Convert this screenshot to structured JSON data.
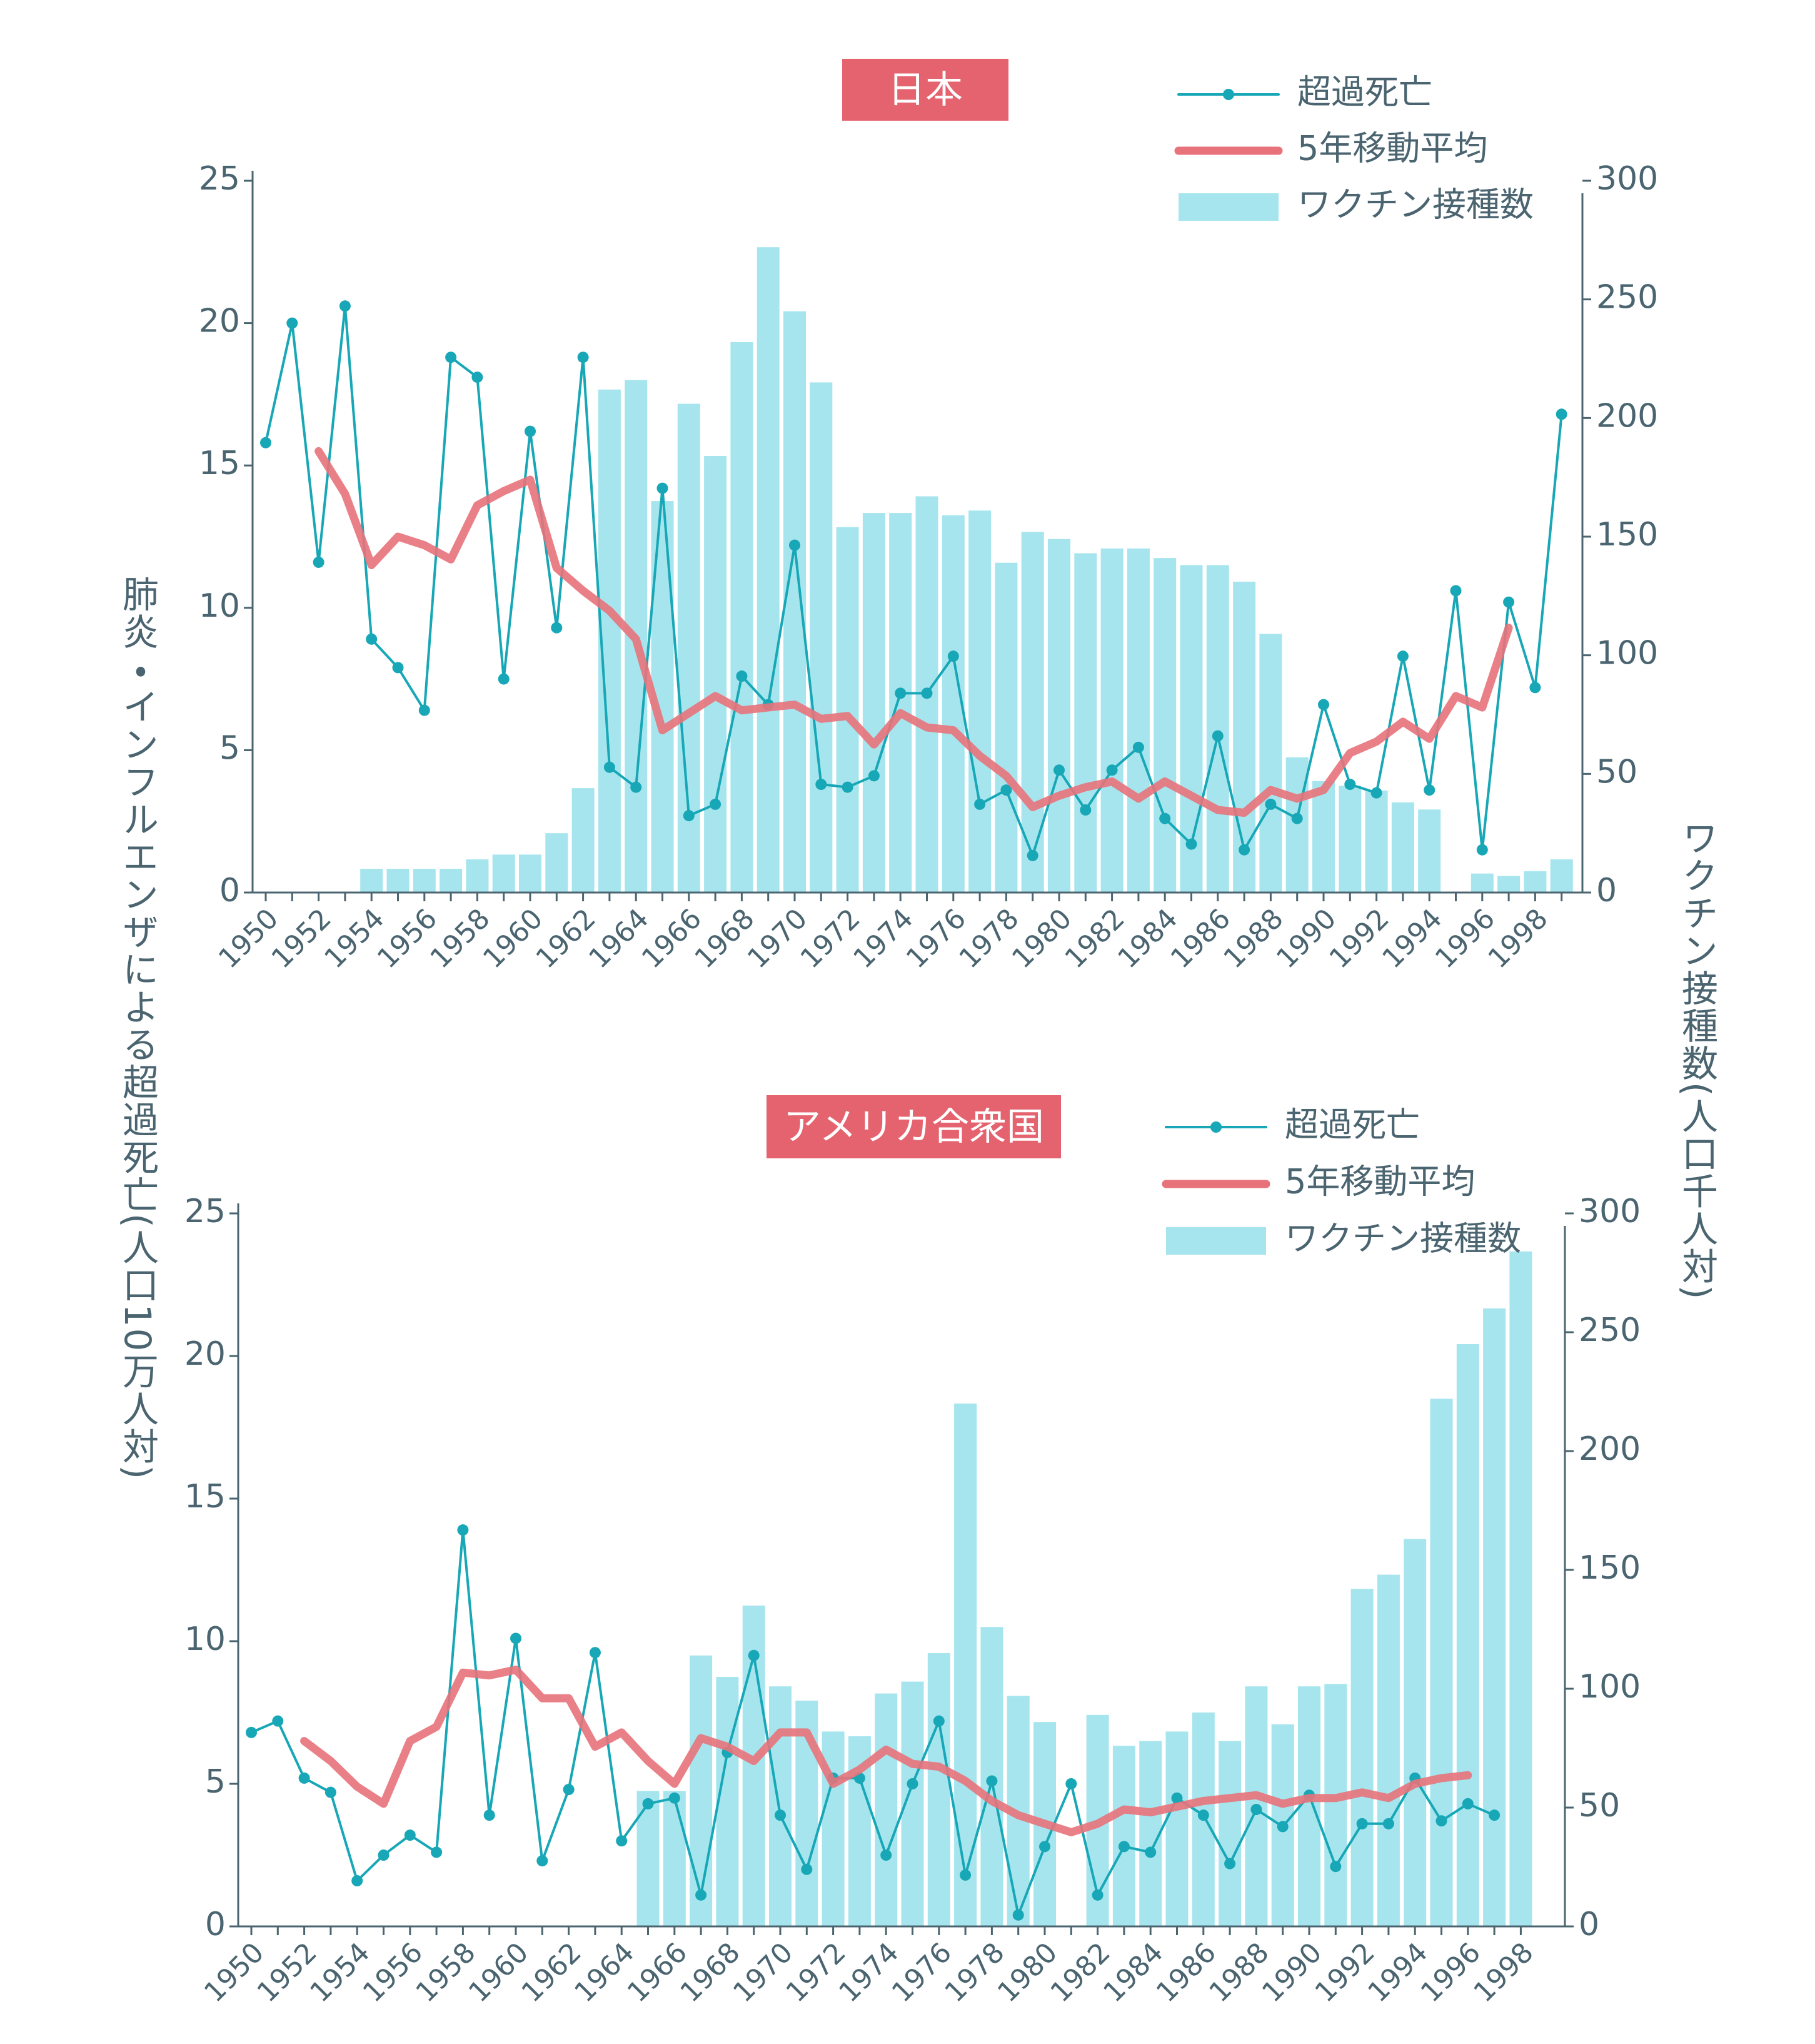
{
  "axis_labels": {
    "left": "肺炎・インフルエンザによる超過死亡(人口10万人対)",
    "right": "ワクチン接種数(人口千人対)"
  },
  "chart_data": [
    {
      "type": "combo",
      "title": "日本",
      "categories": [
        "1950",
        null,
        "1952",
        null,
        "1954",
        null,
        "1956",
        null,
        "1958",
        null,
        "1960",
        null,
        "1962",
        null,
        "1964",
        null,
        "1966",
        null,
        "1968",
        null,
        "1970",
        null,
        "1972",
        null,
        "1974",
        null,
        "1976",
        null,
        "1978",
        null,
        "1980",
        null,
        "1982",
        null,
        "1984",
        null,
        "1986",
        null,
        "1988",
        null,
        "1990",
        null,
        "1992",
        null,
        "1994",
        null,
        "1996",
        null,
        "1998",
        null
      ],
      "ylim": [
        0,
        25
      ],
      "yticks": [
        0,
        5,
        10,
        15,
        20,
        25
      ],
      "y2lim": [
        0,
        300
      ],
      "y2ticks": [
        0,
        50,
        100,
        150,
        200,
        250,
        300
      ],
      "series": [
        {
          "name": "超過死亡",
          "type": "line",
          "marker": true,
          "color": "#17a7b6",
          "values": [
            15.8,
            20.0,
            11.6,
            20.6,
            8.9,
            7.9,
            6.4,
            18.8,
            18.1,
            7.5,
            16.2,
            9.3,
            18.8,
            4.4,
            3.7,
            14.2,
            2.7,
            3.1,
            7.6,
            6.6,
            12.2,
            3.8,
            3.7,
            4.1,
            7.0,
            7.0,
            8.3,
            3.1,
            3.6,
            1.3,
            4.3,
            2.9,
            4.3,
            5.1,
            2.6,
            1.7,
            5.5,
            1.5,
            3.1,
            2.6,
            6.6,
            3.8,
            3.5,
            8.3,
            3.6,
            10.6,
            1.5,
            10.2,
            7.2,
            16.8
          ]
        },
        {
          "name": "5年移動平均",
          "type": "line",
          "marker": false,
          "color": "#e8727a",
          "values": [
            null,
            null,
            15.5,
            14.0,
            11.5,
            12.5,
            12.2,
            11.7,
            13.6,
            14.1,
            14.5,
            11.4,
            10.6,
            9.9,
            8.9,
            5.7,
            6.3,
            6.9,
            6.4,
            6.5,
            6.6,
            6.1,
            6.2,
            5.2,
            6.3,
            5.8,
            5.7,
            4.8,
            4.1,
            3.0,
            3.4,
            3.7,
            3.9,
            3.3,
            3.9,
            3.4,
            2.9,
            2.8,
            3.6,
            3.3,
            3.6,
            4.9,
            5.3,
            6.0,
            5.4,
            6.9,
            6.5,
            9.3,
            null,
            null
          ]
        },
        {
          "name": "ワクチン接種数",
          "type": "bar",
          "axis": "y2",
          "color": "#a6e5ee",
          "values": [
            0,
            0,
            0,
            0,
            10,
            10,
            10,
            10,
            14,
            16,
            16,
            25,
            44,
            212,
            216,
            165,
            206,
            184,
            232,
            272,
            245,
            215,
            154,
            160,
            160,
            167,
            159,
            161,
            139,
            152,
            149,
            143,
            145,
            145,
            141,
            138,
            138,
            131,
            109,
            57,
            47,
            45,
            43,
            38,
            35,
            0,
            8,
            7,
            9,
            14
          ]
        }
      ]
    },
    {
      "type": "combo",
      "title": "アメリカ合衆国",
      "categories": [
        "1950",
        null,
        "1952",
        null,
        "1954",
        null,
        "1956",
        null,
        "1958",
        null,
        "1960",
        null,
        "1962",
        null,
        "1964",
        null,
        "1966",
        null,
        "1968",
        null,
        "1970",
        null,
        "1972",
        null,
        "1974",
        null,
        "1976",
        null,
        "1978",
        null,
        "1980",
        null,
        "1982",
        null,
        "1984",
        null,
        "1986",
        null,
        "1988",
        null,
        "1990",
        null,
        "1992",
        null,
        "1994",
        null,
        "1996",
        null,
        "1998"
      ],
      "ylim": [
        0,
        25
      ],
      "yticks": [
        0,
        5,
        10,
        15,
        20,
        25
      ],
      "y2lim": [
        0,
        300
      ],
      "y2ticks": [
        0,
        50,
        100,
        150,
        200,
        250,
        300
      ],
      "series": [
        {
          "name": "超過死亡",
          "type": "line",
          "marker": true,
          "color": "#17a7b6",
          "values": [
            6.8,
            7.2,
            5.2,
            4.7,
            1.6,
            2.5,
            3.2,
            2.6,
            13.9,
            3.9,
            10.1,
            2.3,
            4.8,
            9.6,
            3.0,
            4.3,
            4.5,
            1.1,
            6.1,
            9.5,
            3.9,
            2.0,
            5.2,
            5.2,
            2.5,
            5.0,
            7.2,
            1.8,
            5.1,
            0.4,
            2.8,
            5.0,
            1.1,
            2.8,
            2.6,
            4.5,
            3.9,
            2.2,
            4.1,
            3.5,
            4.6,
            2.1,
            3.6,
            3.6,
            5.2,
            3.7,
            4.3,
            3.9,
            null
          ]
        },
        {
          "name": "5年移動平均",
          "type": "line",
          "marker": false,
          "color": "#e8727a",
          "values": [
            null,
            null,
            6.5,
            5.8,
            4.9,
            4.3,
            6.5,
            7.0,
            8.9,
            8.8,
            9.0,
            8.0,
            8.0,
            6.3,
            6.8,
            5.8,
            5.0,
            6.6,
            6.3,
            5.8,
            6.8,
            6.8,
            5.0,
            5.5,
            6.2,
            5.7,
            5.6,
            5.1,
            4.4,
            3.9,
            3.6,
            3.3,
            3.6,
            4.1,
            4.0,
            4.2,
            4.4,
            4.5,
            4.6,
            4.3,
            4.5,
            4.5,
            4.7,
            4.5,
            5.0,
            5.2,
            5.3,
            null,
            null
          ]
        },
        {
          "name": "ワクチン接種数",
          "type": "bar",
          "axis": "y2",
          "color": "#a6e5ee",
          "values": [
            0,
            0,
            0,
            0,
            0,
            0,
            0,
            0,
            0,
            0,
            0,
            0,
            0,
            0,
            0,
            57,
            57,
            114,
            105,
            135,
            101,
            95,
            82,
            80,
            98,
            103,
            115,
            220,
            126,
            97,
            86,
            0,
            89,
            76,
            78,
            82,
            90,
            78,
            101,
            85,
            101,
            102,
            142,
            148,
            163,
            222,
            245,
            260,
            284
          ]
        }
      ]
    }
  ]
}
